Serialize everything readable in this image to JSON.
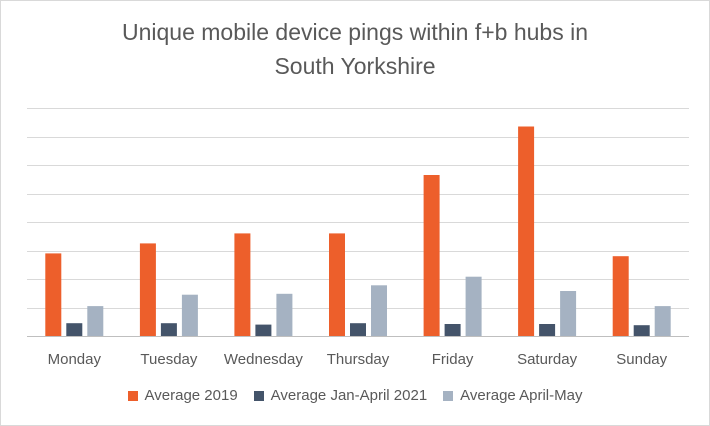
{
  "chart_data": {
    "type": "bar",
    "title_lines": [
      "Unique mobile device pings within f+b hubs in",
      "South Yorkshire"
    ],
    "categories": [
      "Monday",
      "Tuesday",
      "Wednesday",
      "Thursday",
      "Friday",
      "Saturday",
      "Sunday"
    ],
    "series": [
      {
        "name": "Average 2019",
        "color": "#ed5f2b",
        "values": [
          2.9,
          3.25,
          3.6,
          3.6,
          5.65,
          7.35,
          2.8
        ]
      },
      {
        "name": "Average Jan-April 2021",
        "color": "#44546a",
        "values": [
          0.45,
          0.45,
          0.4,
          0.45,
          0.42,
          0.42,
          0.38
        ]
      },
      {
        "name": "Average April-May",
        "color": "#a5b2c2",
        "values": [
          1.05,
          1.45,
          1.48,
          1.78,
          2.08,
          1.58,
          1.05
        ]
      }
    ],
    "ylim": [
      0,
      8
    ],
    "y_gridlines": 8,
    "y_tick_labels_shown": false,
    "grid": true,
    "legend_position": "bottom"
  }
}
